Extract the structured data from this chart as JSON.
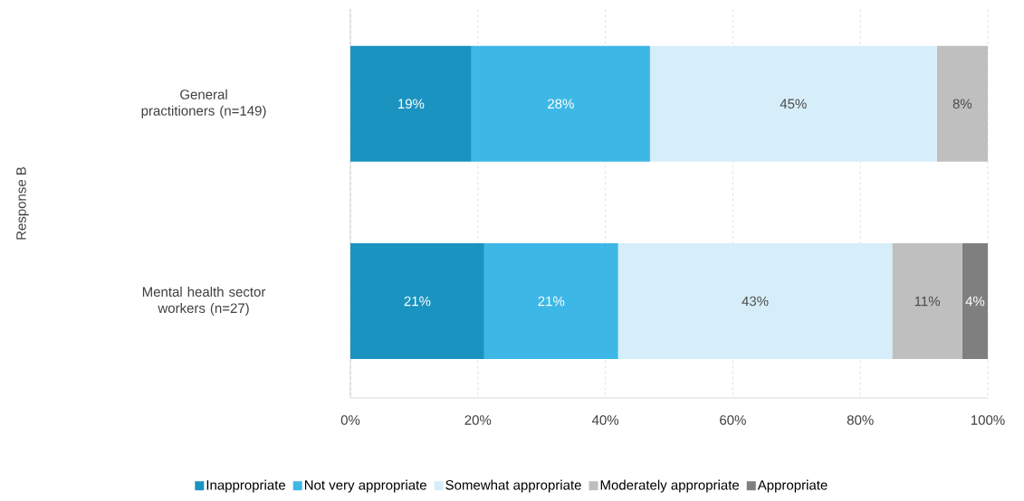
{
  "chart_data": {
    "type": "bar",
    "orientation": "horizontal",
    "stacked": true,
    "annotations": [
      "Response B"
    ],
    "categories": [
      "General practitioners (n=149)",
      "Mental health sector workers (n=27)"
    ],
    "series": [
      {
        "name": "Inappropriate",
        "color": "#1b93c0",
        "values": [
          19,
          21
        ],
        "value_labels": [
          "19%",
          "21%"
        ]
      },
      {
        "name": "Not very appropriate",
        "color": "#3db8e6",
        "values": [
          28,
          21
        ],
        "value_labels": [
          "28%",
          "21%"
        ]
      },
      {
        "name": "Somewhat appropriate",
        "color": "#d6eef9",
        "values": [
          45,
          43
        ],
        "value_labels": [
          "45%",
          "43%"
        ]
      },
      {
        "name": "Moderately appropriate",
        "color": "#bfbfbf",
        "values": [
          8,
          11
        ],
        "value_labels": [
          "8%",
          "11%"
        ]
      },
      {
        "name": "Appropriate",
        "color": "#7f7f7f",
        "values": [
          null,
          4
        ],
        "value_labels": [
          null,
          "4%"
        ]
      }
    ],
    "xlim": [
      0,
      100
    ],
    "xticks": [
      {
        "value": 0,
        "label": "0%"
      },
      {
        "value": 20,
        "label": "20%"
      },
      {
        "value": 40,
        "label": "40%"
      },
      {
        "value": 60,
        "label": "60%"
      },
      {
        "value": 80,
        "label": "80%"
      },
      {
        "value": 100,
        "label": "100%"
      }
    ],
    "grid": "x",
    "legend": "bottom"
  }
}
